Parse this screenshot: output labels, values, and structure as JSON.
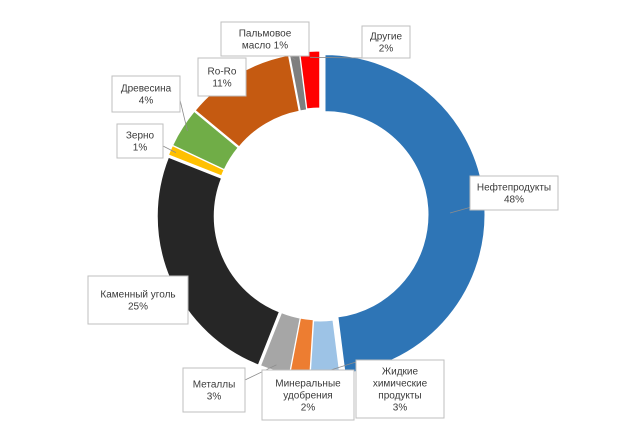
{
  "chart_data": {
    "type": "pie",
    "title": "",
    "colors": {
      "oil": "#2e75b6",
      "chem": "#9dc3e6",
      "fert": "#ed7d31",
      "metals": "#a6a6a6",
      "coal": "#262626",
      "grain": "#ffc000",
      "wood": "#70ad47",
      "roro": "#c55a11",
      "palm": "#7f7f7f",
      "other": "#ff0000"
    },
    "slices": [
      {
        "key": "oil",
        "name_lines": [
          "Нефтепродукты"
        ],
        "value": 48,
        "pct": "48%"
      },
      {
        "key": "chem",
        "name_lines": [
          "Жидкие",
          "химические",
          "продукты"
        ],
        "value": 3,
        "pct": "3%"
      },
      {
        "key": "fert",
        "name_lines": [
          "Минеральные",
          "удобрения"
        ],
        "value": 2,
        "pct": "2%"
      },
      {
        "key": "metals",
        "name_lines": [
          "Металлы"
        ],
        "value": 3,
        "pct": "3%"
      },
      {
        "key": "coal",
        "name_lines": [
          "Каменный уголь"
        ],
        "value": 25,
        "pct": "25%"
      },
      {
        "key": "grain",
        "name_lines": [
          "Зерно"
        ],
        "value": 1,
        "pct": "1%"
      },
      {
        "key": "wood",
        "name_lines": [
          "Древесина"
        ],
        "value": 4,
        "pct": "4%"
      },
      {
        "key": "roro",
        "name_lines": [
          "Ro-Ro"
        ],
        "value": 11,
        "pct": "11%"
      },
      {
        "key": "palm",
        "name_lines": [
          "Пальмовое",
          "масло 1%"
        ],
        "value": 1,
        "pct": ""
      },
      {
        "key": "other",
        "name_lines": [
          "Другие"
        ],
        "value": 2,
        "pct": "2%"
      }
    ]
  }
}
